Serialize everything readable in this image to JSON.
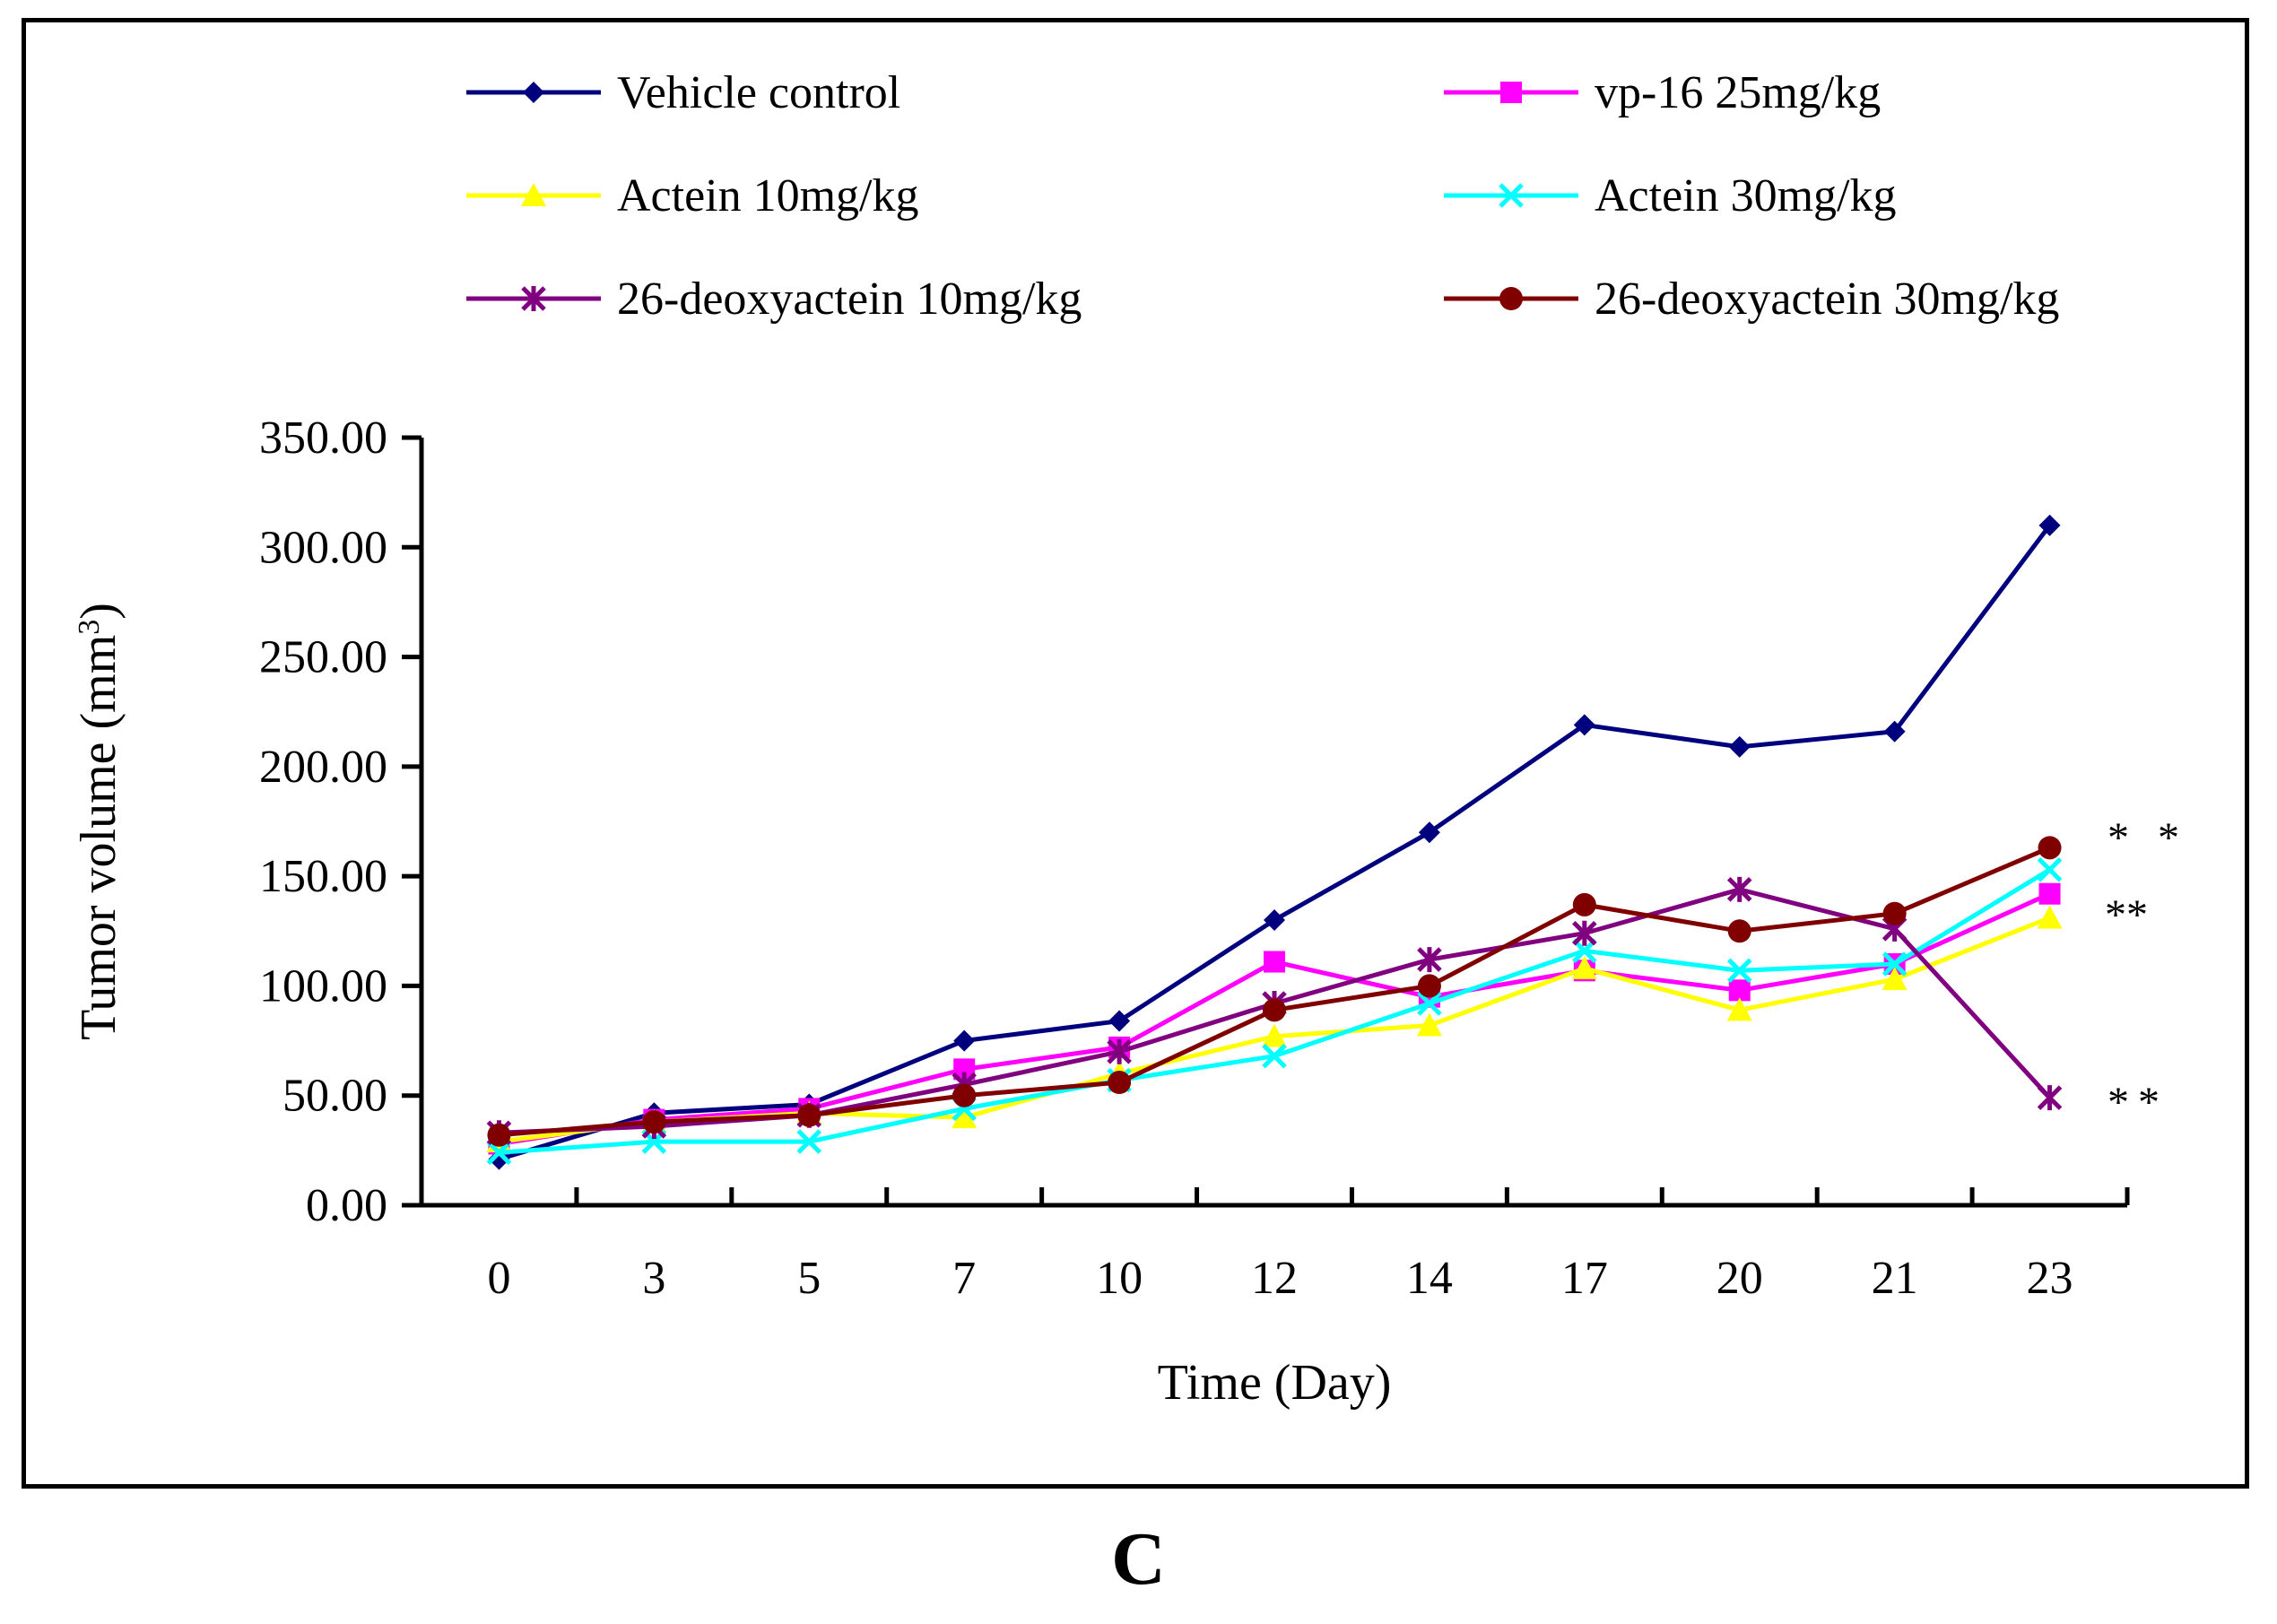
{
  "panel_label": "C",
  "chart_data": {
    "type": "line",
    "title": "",
    "xlabel": "Time (Day)",
    "ylabel": "Tumor volume (mm³)",
    "ylabel_base": "Tumor volume (mm",
    "ylabel_sup": "3",
    "ylabel_close": ")",
    "categories": [
      "0",
      "3",
      "5",
      "7",
      "10",
      "12",
      "14",
      "17",
      "20",
      "21",
      "23"
    ],
    "ylim": [
      0,
      350
    ],
    "yticks": [
      "0.00",
      "50.00",
      "100.00",
      "150.00",
      "200.00",
      "250.00",
      "300.00",
      "350.00"
    ],
    "grid": false,
    "legend_position": "top",
    "series": [
      {
        "name": "Vehicle control",
        "color": "#00007F",
        "marker": "diamond",
        "values": [
          21,
          42,
          46,
          75,
          84,
          130,
          170,
          219,
          209,
          216,
          310
        ]
      },
      {
        "name": "vp-16 25mg/kg",
        "color": "#FF00FF",
        "marker": "square",
        "values": [
          28,
          39,
          44,
          62,
          72,
          111,
          95,
          107,
          98,
          110,
          142
        ]
      },
      {
        "name": "Actein 10mg/kg",
        "color": "#FFFF00",
        "marker": "triangle",
        "values": [
          29,
          38,
          42,
          40,
          60,
          77,
          82,
          108,
          89,
          103,
          131
        ]
      },
      {
        "name": "Actein 30mg/kg",
        "color": "#00FFFF",
        "marker": "x",
        "values": [
          24,
          29,
          29,
          44,
          57,
          68,
          92,
          116,
          107,
          110,
          153
        ]
      },
      {
        "name": "26-deoxyactein 10mg/kg",
        "color": "#800080",
        "marker": "star",
        "values": [
          33,
          36,
          41,
          55,
          70,
          92,
          112,
          124,
          144,
          126,
          49
        ]
      },
      {
        "name": "26-deoxyactein 30mg/kg",
        "color": "#800000",
        "marker": "circle",
        "values": [
          32,
          38,
          41,
          50,
          56,
          89,
          100,
          137,
          125,
          133,
          163
        ]
      }
    ],
    "annotations": [
      "* *",
      "**",
      "**"
    ]
  }
}
